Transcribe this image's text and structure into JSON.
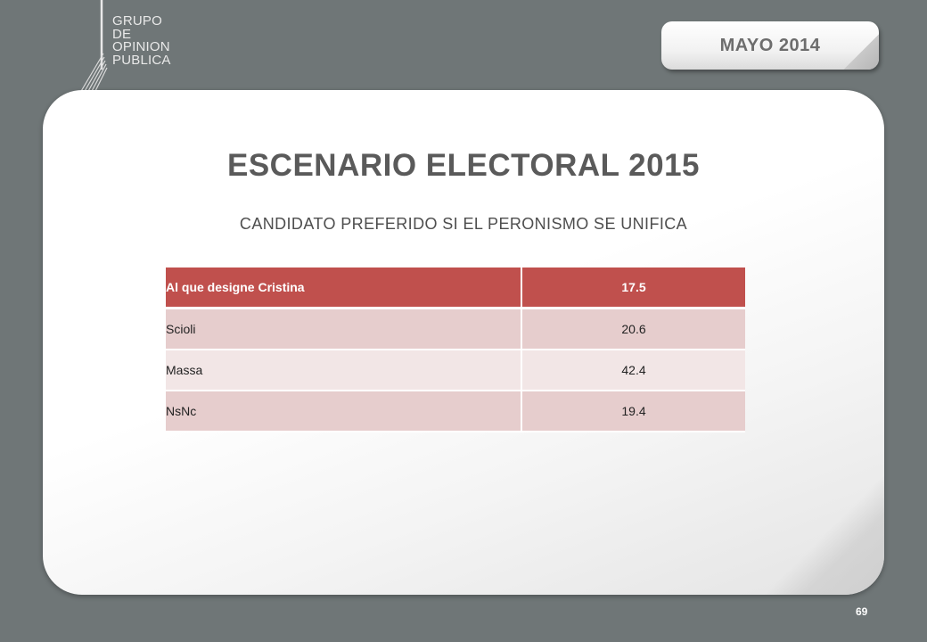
{
  "logo": {
    "lines": [
      "GRUPO",
      "DE",
      "OPINION",
      "PUBLICA"
    ]
  },
  "date_tab": {
    "label": "MAYO 2014"
  },
  "slide": {
    "title": "ESCENARIO ELECTORAL 2015",
    "subtitle": "CANDIDATO PREFERIDO SI EL PERONISMO SE UNIFICA",
    "table": {
      "header": {
        "label": "Al que designe Cristina",
        "value": "17.5"
      },
      "rows": [
        {
          "label": "Scioli",
          "value": "20.6"
        },
        {
          "label": "Massa",
          "value": "42.4"
        },
        {
          "label": "NsNc",
          "value": "19.4"
        }
      ]
    },
    "page_number": "69"
  },
  "colors": {
    "background": "#6f7677",
    "table_header": "#c0504d",
    "row_odd": "#e6cdcd",
    "row_even": "#f2e6e6"
  }
}
